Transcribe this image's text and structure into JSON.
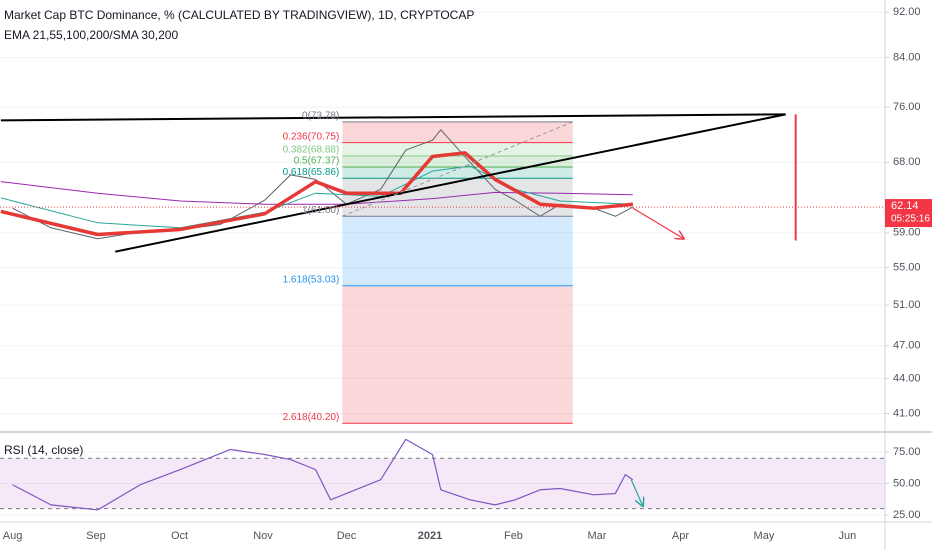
{
  "chart_data": [
    {
      "type": "line",
      "title": "Market Cap BTC Dominance, % (CALCULATED BY TRADINGVIEW), 1D, CRYPTOCAP",
      "subtitle": "EMA 21,55,100,200/SMA 30,200",
      "log_scale": true,
      "xlim": [
        -0.15,
        10.45
      ],
      "xticks": [
        {
          "value": 0,
          "label": "Aug"
        },
        {
          "value": 1,
          "label": "Sep"
        },
        {
          "value": 2,
          "label": "Oct"
        },
        {
          "value": 3,
          "label": "Nov"
        },
        {
          "value": 4,
          "label": "Dec"
        },
        {
          "value": 5,
          "label": "2021"
        },
        {
          "value": 6,
          "label": "Feb"
        },
        {
          "value": 7,
          "label": "Mar"
        },
        {
          "value": 8,
          "label": "Apr"
        },
        {
          "value": 9,
          "label": "May"
        },
        {
          "value": 10,
          "label": "Jun"
        }
      ],
      "ylim": [
        39.5,
        94.3
      ],
      "yticks": [
        {
          "value": 92,
          "label": "92.00"
        },
        {
          "value": 84,
          "label": "84.00"
        },
        {
          "value": 76,
          "label": "76.00"
        },
        {
          "value": 68,
          "label": "68.00"
        },
        {
          "value": 59,
          "label": "59.00"
        },
        {
          "value": 55,
          "label": "55.00"
        },
        {
          "value": 51,
          "label": "51.00"
        },
        {
          "value": 47,
          "label": "47.00"
        },
        {
          "value": 44,
          "label": "44.00"
        },
        {
          "value": 41,
          "label": "41.00"
        }
      ],
      "grid": true,
      "last_price": {
        "value": 62.14,
        "label": "62.14",
        "countdown": "05:25:16",
        "color": "#f23645"
      },
      "series": [
        {
          "color": "#5d606b",
          "width": 1,
          "x": [
            0,
            0.46,
            1.02,
            1.53,
            2.01,
            2.49,
            3.02,
            3.33,
            3.63,
            4.0,
            4.41,
            4.71,
            5.03,
            5.13,
            5.48,
            5.78,
            6.02,
            6.32,
            6.56,
            6.96,
            7.22,
            7.43
          ],
          "values": [
            62.0,
            59.6,
            58.3,
            59.1,
            59.4,
            60.0,
            63.0,
            66.3,
            65.7,
            62.5,
            64.4,
            69.7,
            71.1,
            72.6,
            68.0,
            64.4,
            63.0,
            61.0,
            62.5,
            62.0,
            61.0,
            62.14
          ]
        },
        {
          "color": "#9c27b0",
          "width": 1,
          "x": [
            -0.14,
            1.02,
            2.01,
            3.02,
            4.0,
            5.03,
            5.78,
            6.56,
            7.43
          ],
          "values": [
            65.4,
            63.9,
            62.9,
            62.5,
            62.5,
            63.2,
            64.0,
            63.9,
            63.7
          ]
        },
        {
          "color": "#26a69a",
          "width": 1,
          "x": [
            -0.14,
            1.02,
            2.01,
            3.02,
            3.63,
            4.41,
            5.03,
            5.48,
            6.02,
            6.56,
            7.43
          ],
          "values": [
            63.3,
            60.2,
            59.6,
            61.5,
            63.9,
            63.5,
            66.8,
            67.5,
            64.4,
            62.9,
            62.5
          ]
        },
        {
          "color": "#e53935",
          "width": 3.5,
          "x": [
            -0.14,
            1.02,
            2.01,
            3.02,
            3.63,
            4.0,
            4.65,
            5.03,
            5.42,
            5.78,
            6.32,
            6.96,
            7.43
          ],
          "values": [
            61.6,
            58.8,
            59.4,
            61.3,
            65.4,
            63.9,
            63.9,
            68.8,
            69.3,
            65.7,
            62.5,
            62.0,
            62.5
          ]
        }
      ],
      "fib": {
        "x": [
          3.95,
          6.71
        ],
        "levels": [
          {
            "value": 73.78,
            "label": "0(73.78)",
            "color": "#787b86"
          },
          {
            "value": 70.75,
            "label": "0.236(70.75)",
            "color": "#f23645"
          },
          {
            "value": 68.88,
            "label": "0.382(68.88)",
            "color": "#81c784"
          },
          {
            "value": 67.37,
            "label": "0.5(67.37)",
            "color": "#4caf50"
          },
          {
            "value": 65.86,
            "label": "0.618(65.86)",
            "color": "#089981"
          },
          {
            "value": 61.0,
            "label": "1(61.00)",
            "color": "#787b86"
          },
          {
            "value": 53.03,
            "label": "1.618(53.03)",
            "color": "#2196f3"
          },
          {
            "value": 40.2,
            "label": "2.618(40.20)",
            "color": "#f23645"
          }
        ]
      },
      "trendlines": [
        {
          "x": [
            -0.14,
            9.26
          ],
          "y": [
            74.0,
            74.9
          ],
          "color": "#000000"
        },
        {
          "x": [
            1.23,
            9.26
          ],
          "y": [
            56.8,
            74.9
          ],
          "color": "#000000"
        },
        {
          "x": [
            9.38,
            9.38
          ],
          "y": [
            74.9,
            58.1
          ],
          "color": "#f23645"
        },
        {
          "x": [
            7.43,
            8.04
          ],
          "y": [
            62.0,
            58.3
          ],
          "color": "#f23645",
          "arrow": true
        },
        {
          "x": [
            3.95,
            6.71
          ],
          "y": [
            61.0,
            73.78
          ],
          "color": "#9598a1",
          "dashed": true
        }
      ]
    },
    {
      "type": "line",
      "title": "RSI (14, close)",
      "ylim": [
        19.4,
        87.7
      ],
      "yticks": [
        {
          "value": 75,
          "label": "75.00"
        },
        {
          "value": 50,
          "label": "50.00"
        },
        {
          "value": 25,
          "label": "25.00"
        }
      ],
      "band": [
        30,
        70
      ],
      "band_color": "#9c27b0",
      "series": [
        {
          "color": "#7e57c2",
          "x": [
            0,
            0.46,
            1.02,
            1.53,
            2.01,
            2.61,
            3.02,
            3.33,
            3.63,
            3.81,
            4.41,
            4.71,
            5.03,
            5.13,
            5.48,
            5.78,
            6.02,
            6.32,
            6.56,
            6.96,
            7.22,
            7.34,
            7.43
          ],
          "values": [
            49,
            33,
            29,
            49,
            61,
            77,
            73,
            69,
            61,
            37,
            53,
            85,
            73,
            45,
            37,
            33,
            37,
            45,
            46,
            41,
            42,
            57,
            53
          ]
        }
      ],
      "trendlines": [
        {
          "x": [
            7.41,
            7.55
          ],
          "y": [
            53,
            32
          ],
          "color": "#26a69a",
          "arrow": true
        }
      ]
    }
  ]
}
